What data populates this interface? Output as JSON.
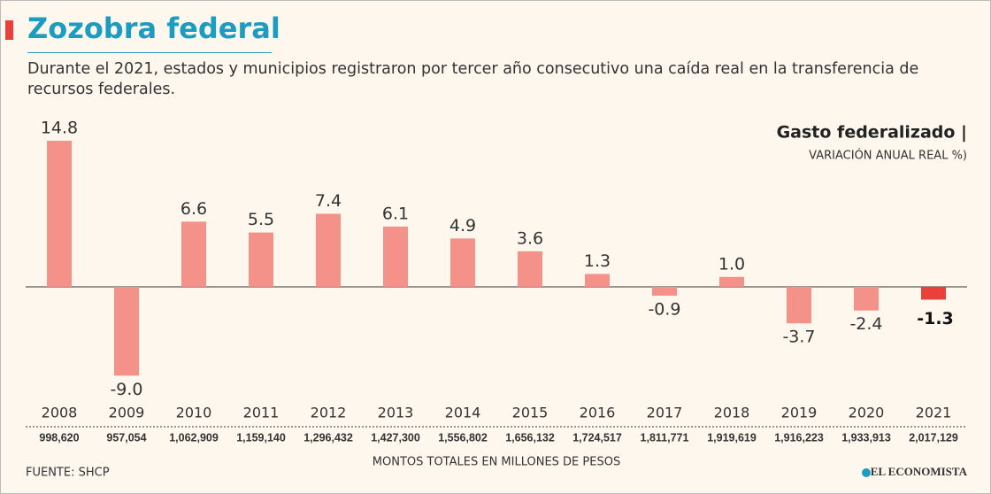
{
  "chart_data": {
    "type": "bar",
    "title": "Zozobra federal",
    "subtitle": "Durante el 2021, estados y municipios registraron por tercer año consecutivo una caída real en la transferencia de recursos federales.",
    "label": "Gasto federalizado |",
    "unit": "VARIACIÓN ANUAL REAL %)",
    "categories": [
      "2008",
      "2009",
      "2010",
      "2011",
      "2012",
      "2013",
      "2014",
      "2015",
      "2016",
      "2017",
      "2018",
      "2019",
      "2020",
      "2021"
    ],
    "values": [
      14.8,
      -9.0,
      6.6,
      5.5,
      7.4,
      6.1,
      4.9,
      3.6,
      1.3,
      -0.9,
      1.0,
      -3.7,
      -2.4,
      -1.3
    ],
    "value_labels": [
      "14.8",
      "-9.0",
      "6.6",
      "5.5",
      "7.4",
      "6.1",
      "4.9",
      "3.6",
      "1.3",
      "-0.9",
      "1.0",
      "-3.7",
      "-2.4",
      "-1.3"
    ],
    "colors": [
      "#f4928a",
      "#f4928a",
      "#f4928a",
      "#f4928a",
      "#f4928a",
      "#f4928a",
      "#f4928a",
      "#f4928a",
      "#f4928a",
      "#f4928a",
      "#f4928a",
      "#f4928a",
      "#f4928a",
      "#e8413c"
    ],
    "totals": [
      {
        "value": 998620,
        "label": "998,620"
      },
      {
        "value": 957054,
        "label": "957,054"
      },
      {
        "value": 1062909,
        "label": "1,062,909"
      },
      {
        "value": 1159140,
        "label": "1,159,140"
      },
      {
        "value": 1296432,
        "label": "1,296,432"
      },
      {
        "value": 1427300,
        "label": "1,427,300"
      },
      {
        "value": 1556802,
        "label": "1,556,802"
      },
      {
        "value": 1656132,
        "label": "1,656,132"
      },
      {
        "value": 1724517,
        "label": "1,724,517"
      },
      {
        "value": 1811771,
        "label": "1,811,771"
      },
      {
        "value": 1919619,
        "label": "1,919,619"
      },
      {
        "value": 1916223,
        "label": "1,916,223"
      },
      {
        "value": 1933913,
        "label": "1,933,913"
      },
      {
        "value": 2017129,
        "label": "2,017,129"
      }
    ],
    "totals_label": "MONTOS TOTALES EN MILLONES DE PESOS",
    "source": "FUENTE: SHCP",
    "publisher": "EL ECONOMISTA",
    "ylim": [
      -11,
      16.5
    ]
  }
}
